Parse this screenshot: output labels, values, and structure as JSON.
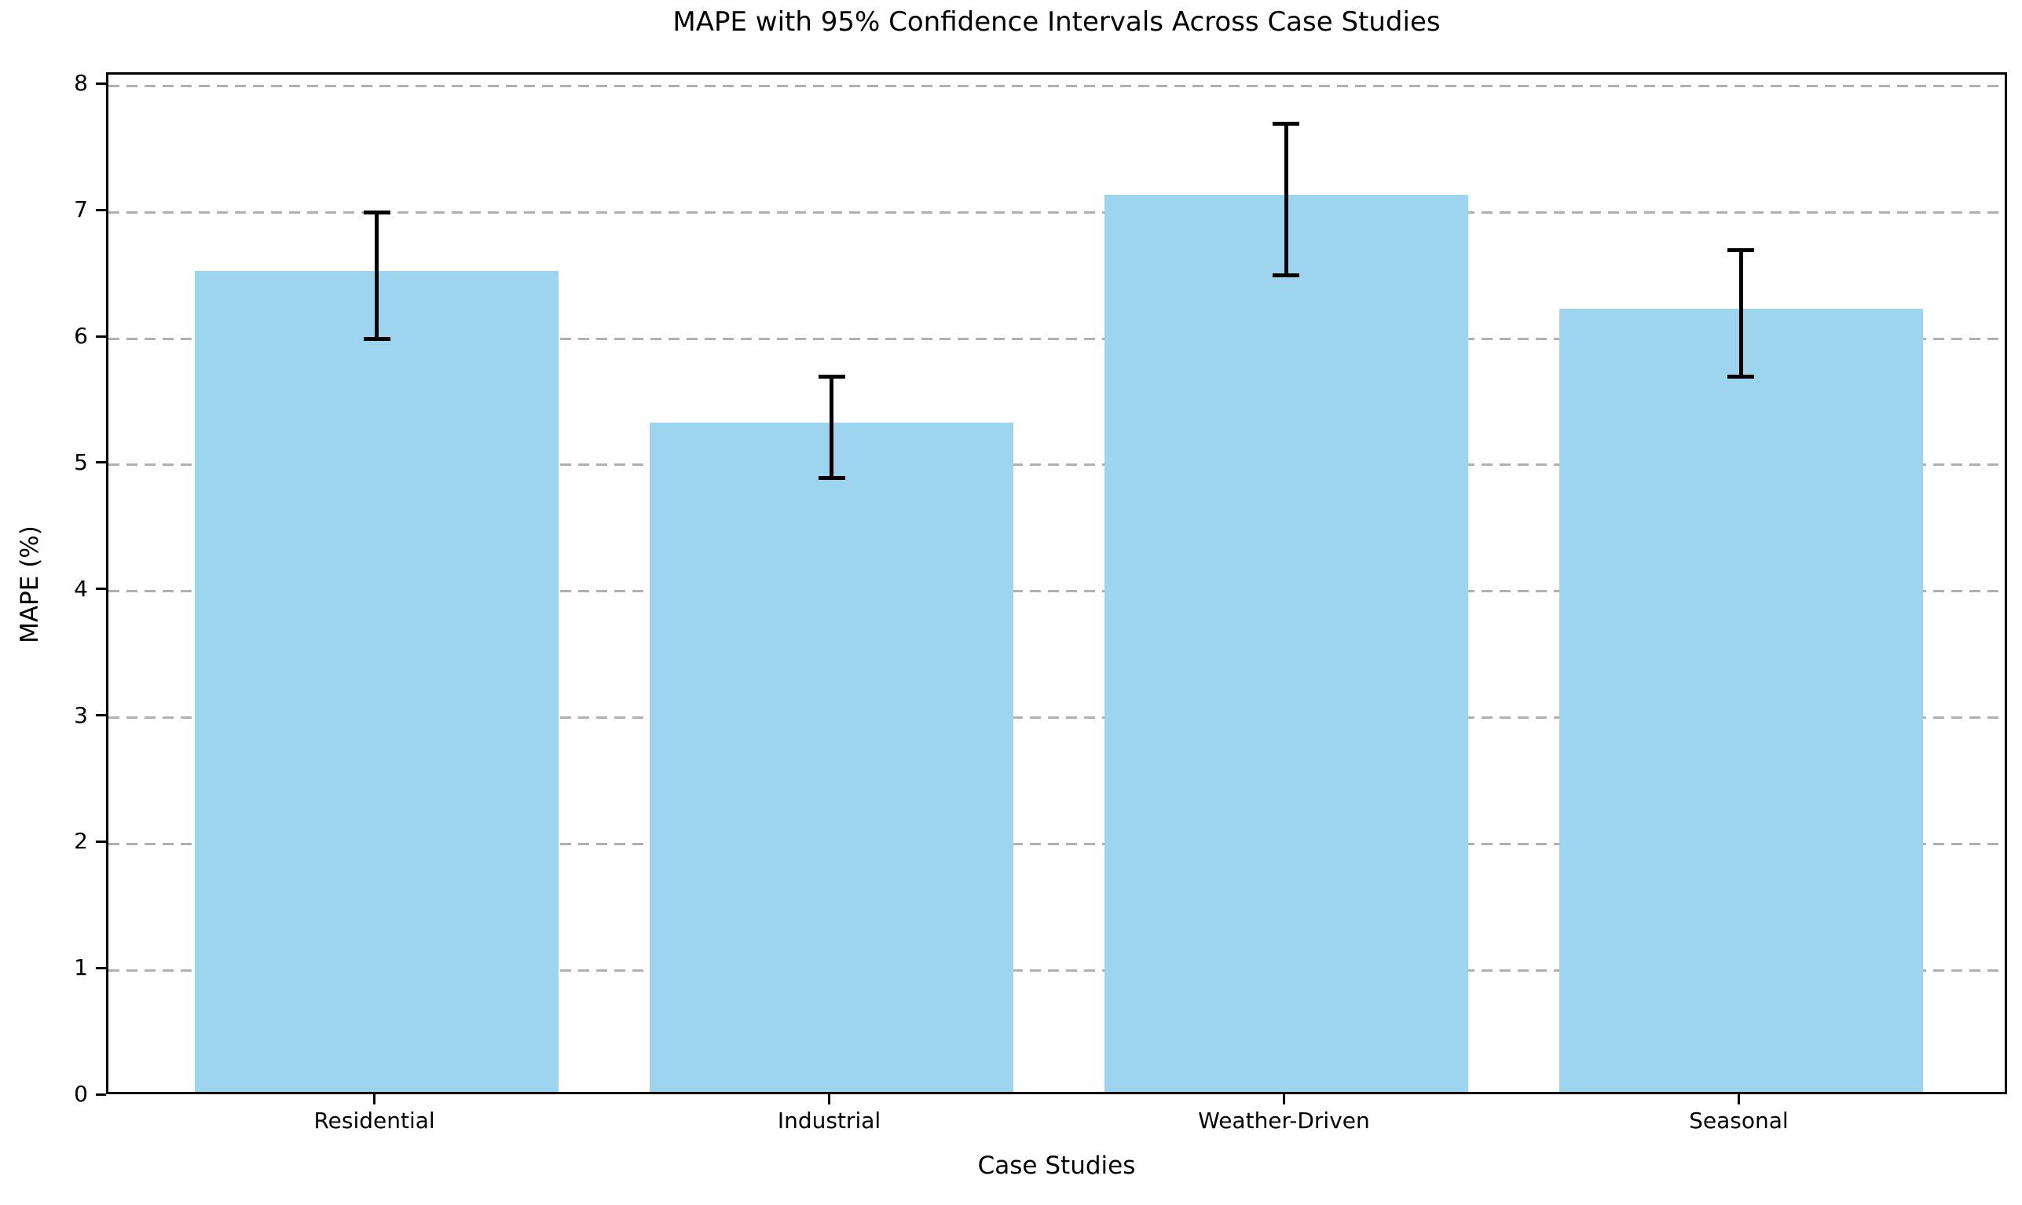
{
  "chart_data": {
    "type": "bar",
    "title": "MAPE with 95% Confidence Intervals Across Case Studies",
    "xlabel": "Case Studies",
    "ylabel": "MAPE (%)",
    "categories": [
      "Residential",
      "Industrial",
      "Weather-Driven",
      "Seasonal"
    ],
    "values": [
      6.5,
      5.3,
      7.1,
      6.2
    ],
    "error_bars": [
      0.5,
      0.4,
      0.6,
      0.5
    ],
    "error_intervals": [
      [
        6.0,
        7.0
      ],
      [
        4.9,
        5.7
      ],
      [
        6.5,
        7.7
      ],
      [
        5.7,
        6.7
      ]
    ],
    "yticks": [
      0,
      1,
      2,
      3,
      4,
      5,
      6,
      7,
      8
    ],
    "ylim": [
      0,
      8.09
    ],
    "grid": "horizontal-dashed",
    "legend_position": "none",
    "bar_color": "#9ed5ee",
    "error_color": "#000000",
    "grid_color": "#b0b0b0"
  }
}
